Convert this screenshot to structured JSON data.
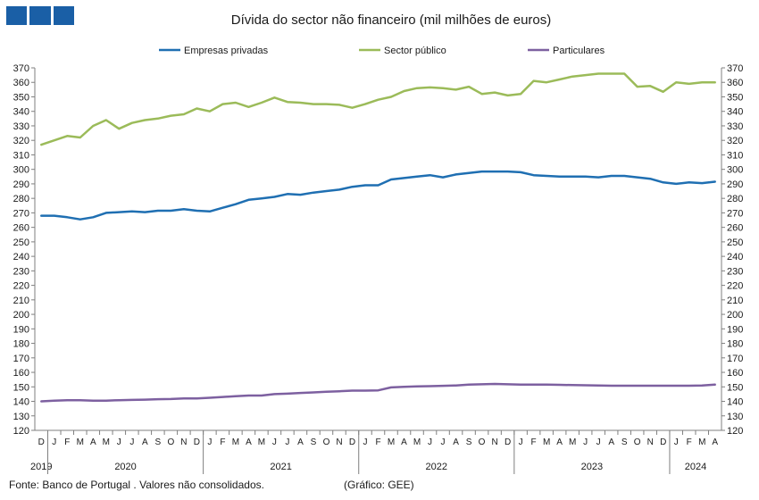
{
  "logo": {
    "color": "#1a5fa6"
  },
  "chart_data": {
    "type": "line",
    "title": "Dívida do sector não financeiro (mil milhões de euros)",
    "ylim": [
      120,
      370
    ],
    "ytick_step": 10,
    "grid": false,
    "legend_position": "top",
    "month_labels": [
      "D",
      "J",
      "F",
      "M",
      "A",
      "M",
      "J",
      "J",
      "A",
      "S",
      "O",
      "N",
      "D",
      "J",
      "F",
      "M",
      "A",
      "M",
      "J",
      "J",
      "A",
      "S",
      "O",
      "N",
      "D",
      "J",
      "F",
      "M",
      "A",
      "M",
      "J",
      "J",
      "A",
      "S",
      "O",
      "N",
      "D",
      "J",
      "F",
      "M",
      "A",
      "M",
      "J",
      "J",
      "A",
      "S",
      "O",
      "N",
      "D",
      "J",
      "F",
      "M",
      "A"
    ],
    "year_labels": [
      {
        "label": "2019",
        "start": 0,
        "end": 0
      },
      {
        "label": "2020",
        "start": 1,
        "end": 12
      },
      {
        "label": "2021",
        "start": 13,
        "end": 24
      },
      {
        "label": "2022",
        "start": 25,
        "end": 36
      },
      {
        "label": "2023",
        "start": 37,
        "end": 48
      },
      {
        "label": "2024",
        "start": 49,
        "end": 52
      }
    ],
    "series": [
      {
        "name": "Empresas privadas",
        "color": "#1f6fb2",
        "values": [
          268,
          268,
          267,
          265.5,
          267,
          270,
          270.5,
          271,
          270.5,
          271.5,
          271.5,
          272.5,
          271.5,
          271,
          273.5,
          276,
          279,
          280,
          281,
          283,
          282.5,
          284,
          285,
          286,
          288,
          289,
          289,
          293,
          294,
          295,
          296,
          294.5,
          296.5,
          297.5,
          298.5,
          298.5,
          298.5,
          298,
          296,
          295.5,
          295,
          295,
          295,
          294.5,
          295.5,
          295.5,
          294.5,
          293.5,
          291,
          290,
          291,
          290.5,
          291.5
        ]
      },
      {
        "name": "Sector público",
        "color": "#9bbb59",
        "values": [
          317,
          320,
          323,
          322,
          330,
          334,
          328,
          332,
          334,
          335,
          337,
          338,
          342,
          340,
          345,
          346,
          343,
          346,
          349.5,
          346.5,
          346,
          345,
          345,
          344.5,
          342.5,
          345,
          348,
          350,
          354,
          356,
          356.5,
          356,
          355,
          357,
          352,
          353,
          351,
          352,
          361,
          360,
          362,
          364,
          365,
          366,
          366,
          366,
          357,
          357.5,
          353.5,
          360,
          359,
          360,
          360
        ]
      },
      {
        "name": "Particulares",
        "color": "#7d60a0",
        "values": [
          140,
          140.5,
          140.8,
          140.8,
          140.5,
          140.5,
          140.8,
          141,
          141.2,
          141.5,
          141.6,
          142,
          142,
          142.5,
          143,
          143.5,
          144,
          144,
          145,
          145.3,
          145.8,
          146.2,
          146.6,
          147,
          147.4,
          147.4,
          147.6,
          149.6,
          150,
          150.3,
          150.5,
          150.7,
          151,
          151.5,
          151.8,
          152,
          151.8,
          151.6,
          151.6,
          151.6,
          151.4,
          151.2,
          151.1,
          151,
          150.8,
          150.8,
          150.8,
          150.8,
          150.8,
          150.8,
          150.8,
          151,
          151.5
        ]
      }
    ]
  },
  "footer": {
    "source": "Fonte: Banco de Portugal . Valores não consolidados.",
    "credit": "(Gráfico: GEE)"
  }
}
